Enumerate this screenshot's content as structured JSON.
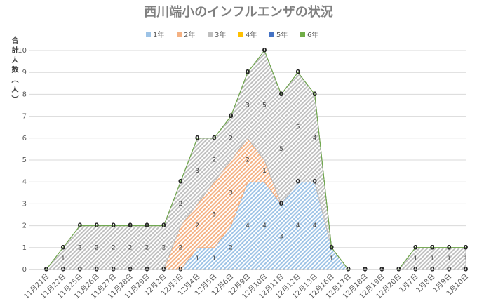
{
  "chart_data": {
    "type": "stacked_area",
    "title": "西川端小のインフルエンザの状況",
    "y_label": "合計人数（人）",
    "categories": [
      "11月21日",
      "11月22日",
      "11月25日",
      "11月26日",
      "11月27日",
      "11月28日",
      "11月29日",
      "12月2日",
      "12月3日",
      "12月4日",
      "12月5日",
      "12月6日",
      "12月9日",
      "12月10日",
      "12月11日",
      "12月12日",
      "12月13日",
      "12月16日",
      "12月17日",
      "12月18日",
      "12月19日",
      "12月20日",
      "1月7日",
      "1月8日",
      "1月9日",
      "1月10日"
    ],
    "series": [
      {
        "name": "1年",
        "color": "#9dc3e6",
        "values": [
          0,
          0,
          0,
          0,
          0,
          0,
          0,
          0,
          0,
          1,
          1,
          2,
          4,
          4,
          3,
          4,
          4,
          1,
          0,
          0,
          0,
          0,
          0,
          0,
          0,
          0
        ]
      },
      {
        "name": "2年",
        "color": "#f4b183",
        "values": [
          0,
          0,
          0,
          0,
          0,
          0,
          0,
          0,
          2,
          2,
          3,
          3,
          2,
          1,
          0,
          0,
          0,
          0,
          0,
          0,
          0,
          0,
          0,
          0,
          0,
          0
        ]
      },
      {
        "name": "3年",
        "color": "#bfbfbf",
        "values": [
          0,
          1,
          2,
          2,
          2,
          2,
          2,
          2,
          2,
          3,
          2,
          2,
          3,
          5,
          5,
          5,
          4,
          0,
          0,
          0,
          0,
          0,
          1,
          1,
          1,
          1
        ]
      },
      {
        "name": "4年",
        "color": "#ffc000",
        "values": [
          0,
          0,
          0,
          0,
          0,
          0,
          0,
          0,
          0,
          0,
          0,
          0,
          0,
          0,
          0,
          0,
          0,
          0,
          0,
          0,
          0,
          0,
          0,
          0,
          0,
          0
        ]
      },
      {
        "name": "5年",
        "color": "#4472c4",
        "values": [
          0,
          0,
          0,
          0,
          0,
          0,
          0,
          0,
          0,
          0,
          0,
          0,
          0,
          0,
          0,
          0,
          0,
          0,
          0,
          0,
          0,
          0,
          0,
          0,
          0,
          0
        ]
      },
      {
        "name": "6年",
        "color": "#70ad47",
        "values": [
          0,
          0,
          0,
          0,
          0,
          0,
          0,
          0,
          0,
          0,
          0,
          0,
          0,
          0,
          0,
          0,
          0,
          0,
          0,
          0,
          0,
          0,
          0,
          0,
          0,
          0
        ]
      }
    ],
    "ylim": [
      0,
      10
    ],
    "yticks": [
      0,
      1,
      2,
      3,
      4,
      5,
      6,
      7,
      8,
      9,
      10
    ],
    "grid": true,
    "legend": "top"
  }
}
